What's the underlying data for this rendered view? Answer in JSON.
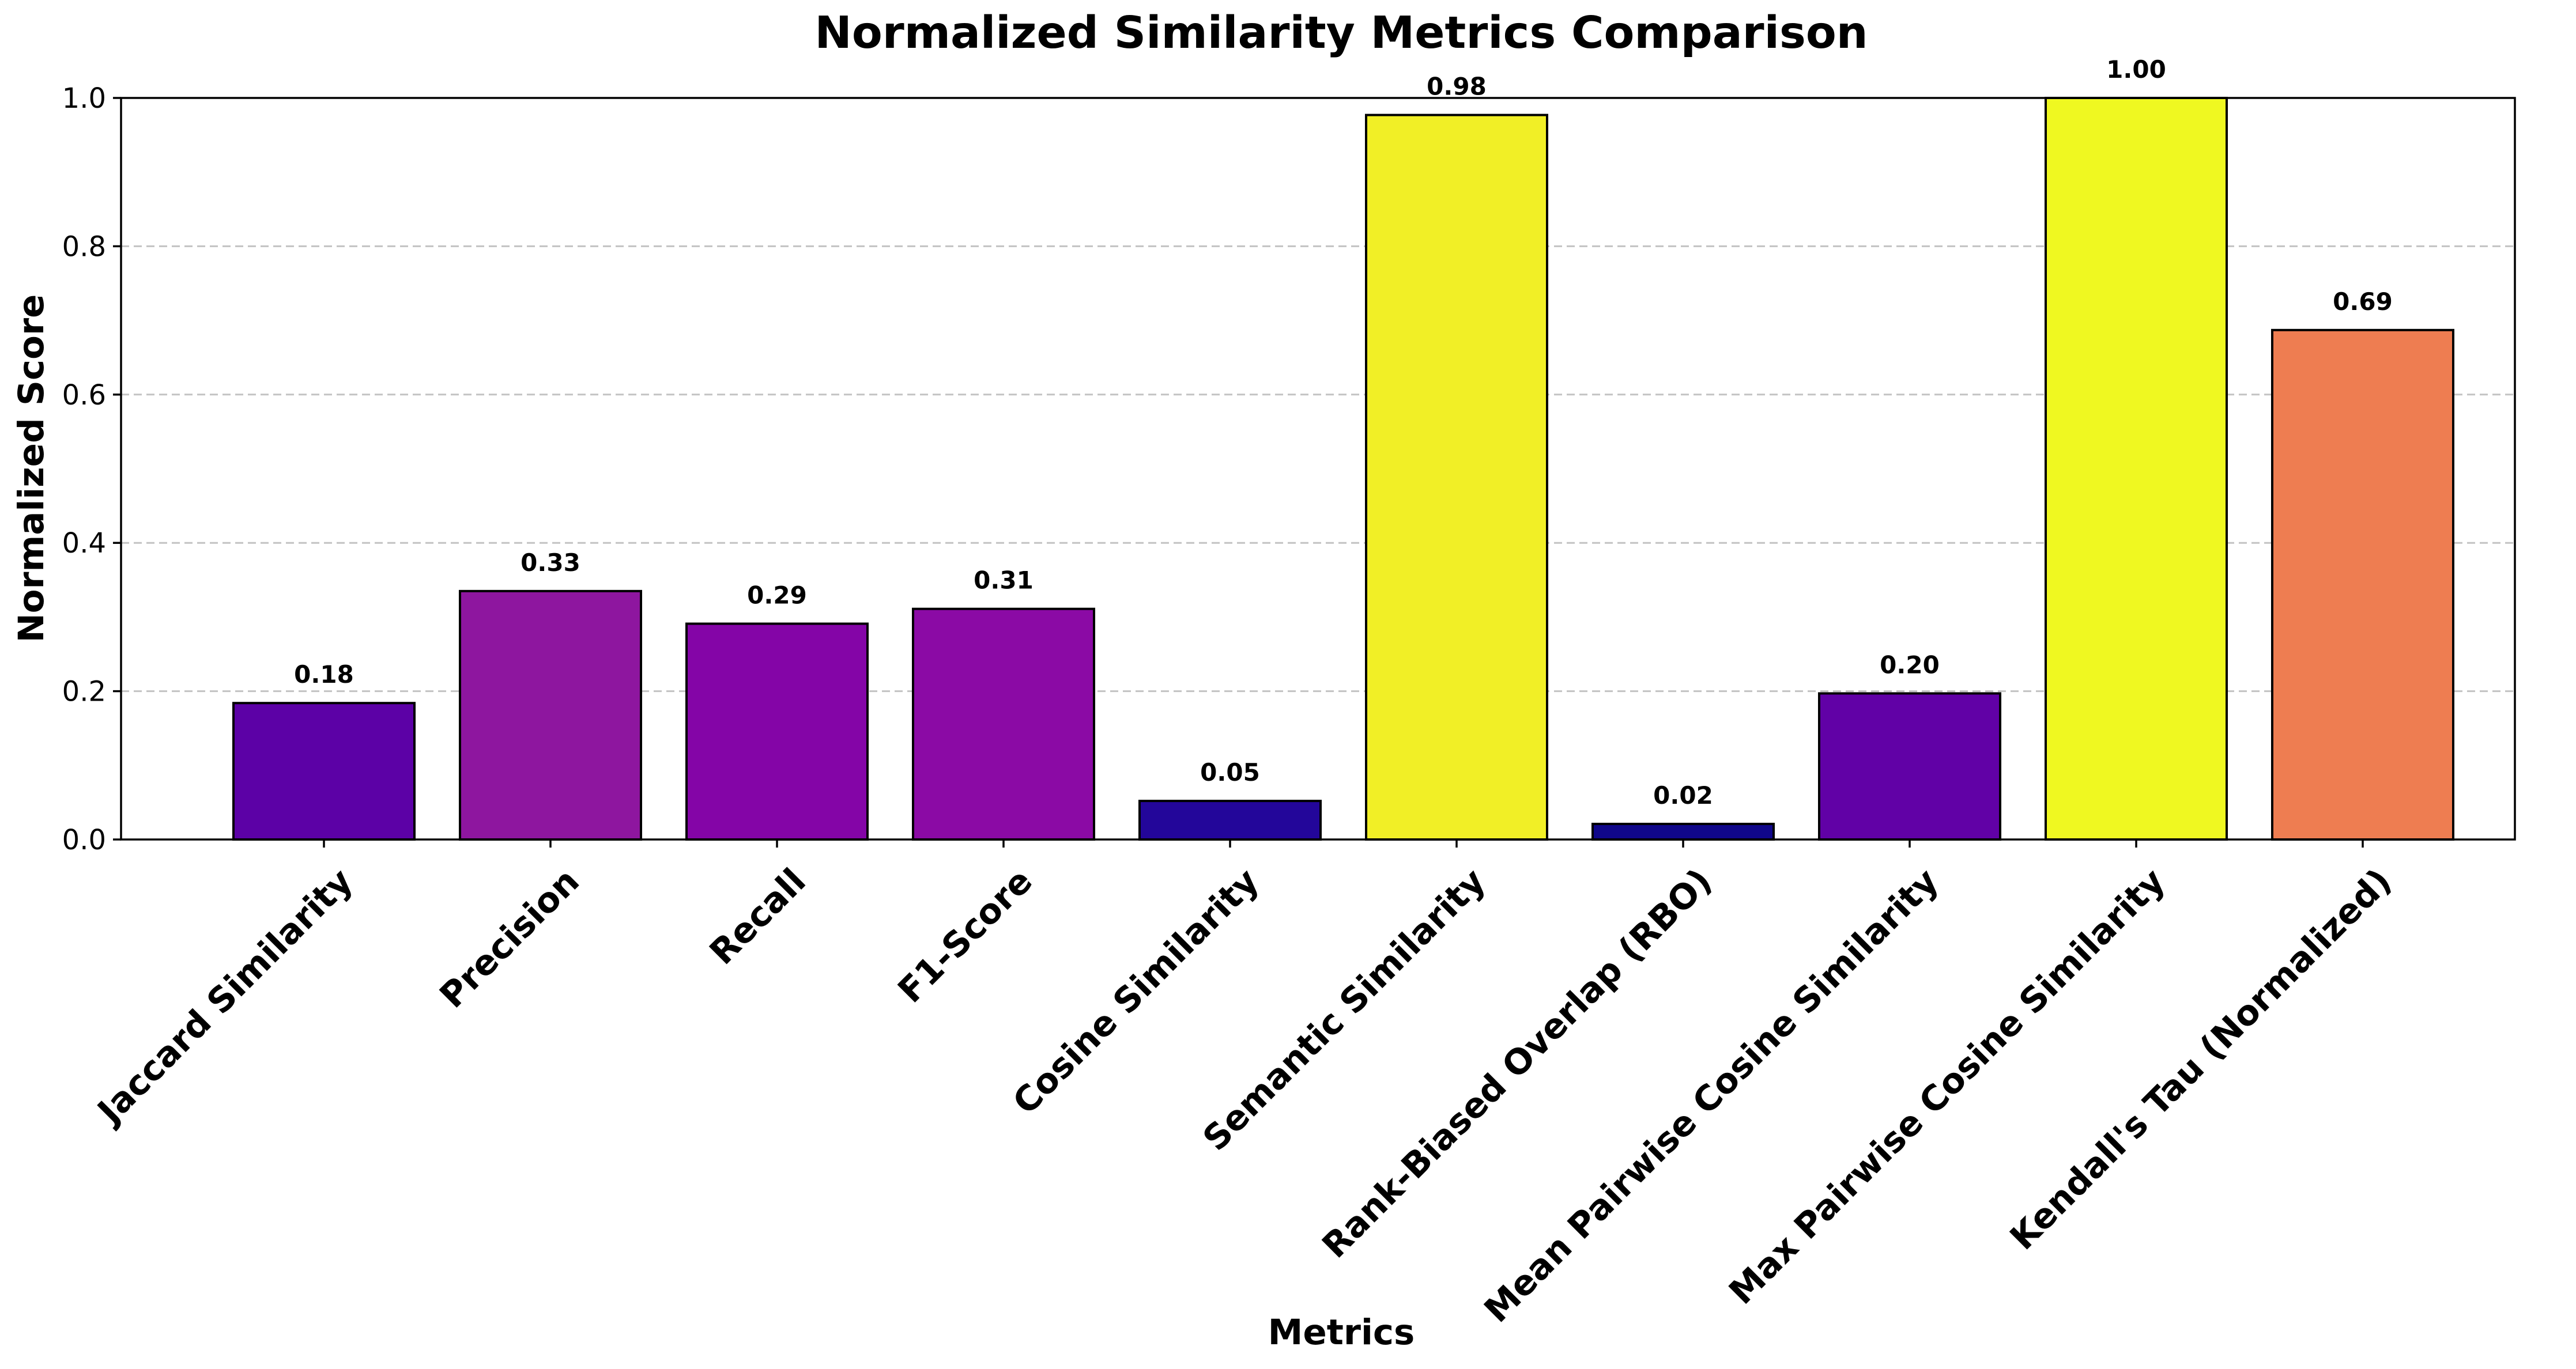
{
  "chart_data": {
    "type": "bar",
    "title": "Normalized Similarity Metrics Comparison",
    "xlabel": "Metrics",
    "ylabel": "Normalized Score",
    "ylim": [
      0,
      1.0
    ],
    "yticks": [
      0.0,
      0.2,
      0.4,
      0.6,
      0.8,
      1.0
    ],
    "ytick_labels": [
      "0.0",
      "0.2",
      "0.4",
      "0.6",
      "0.8",
      "1.0"
    ],
    "grid": "y-dashed",
    "categories": [
      "Jaccard Similarity",
      "Precision",
      "Recall",
      "F1-Score",
      "Cosine Similarity",
      "Semantic Similarity",
      "Rank-Biased Overlap (RBO)",
      "Mean Pairwise Cosine Similarity",
      "Max Pairwise Cosine Similarity",
      "Kendall's Tau (Normalized)"
    ],
    "values": [
      0.184,
      0.335,
      0.291,
      0.311,
      0.052,
      0.977,
      0.021,
      0.197,
      1.0,
      0.687
    ],
    "value_labels": [
      "0.18",
      "0.33",
      "0.29",
      "0.31",
      "0.05",
      "0.98",
      "0.02",
      "0.20",
      "1.00",
      "0.69"
    ],
    "colors": [
      "#5c01a6",
      "#8e169f",
      "#8405a7",
      "#8b0aa5",
      "#23069a",
      "#f1ef26",
      "#10078a",
      "#6101a6",
      "#eff821",
      "#ee7d51"
    ]
  }
}
